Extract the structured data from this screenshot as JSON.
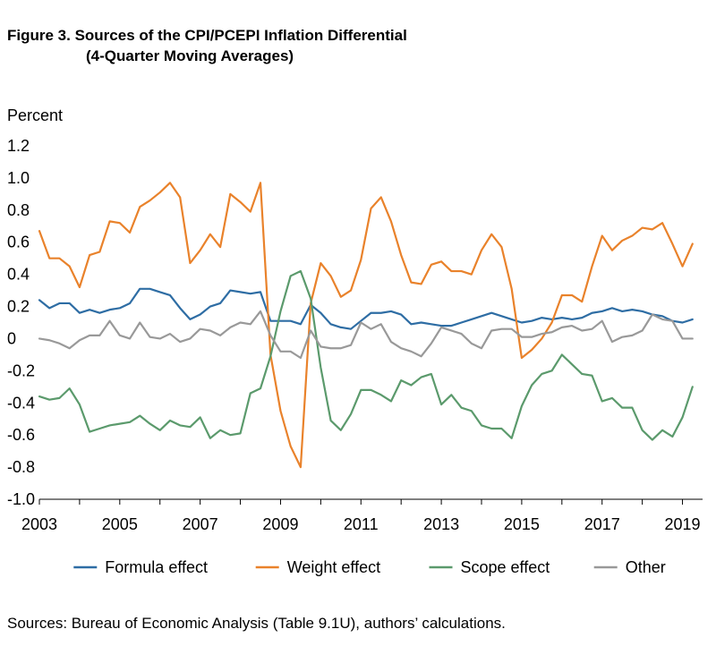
{
  "figure": {
    "title_line1": "Figure 3. Sources of the CPI/PCEPI Inflation Differential",
    "title_line2": "(4-Quarter Moving Averages)",
    "source": "Sources: Bureau of Economic Analysis (Table 9.1U), authors’ calculations."
  },
  "chart_data": {
    "type": "line",
    "title": "Figure 3. Sources of the CPI/PCEPI Inflation Differential (4-Quarter Moving Averages)",
    "xlabel": "",
    "ylabel": "Percent",
    "xlim": [
      2003.0,
      2019.5
    ],
    "ylim": [
      -1.0,
      1.2
    ],
    "x_ticks": [
      "2003",
      "2005",
      "2007",
      "2009",
      "2011",
      "2013",
      "2015",
      "2017",
      "2019"
    ],
    "y_ticks": [
      "1.2",
      "1.0",
      "0.8",
      "0.6",
      "0.4",
      "0.2",
      "0",
      "-0.2",
      "-0.4",
      "-0.6",
      "-0.8",
      "-1.0"
    ],
    "grid": false,
    "legend_position": "bottom",
    "x_start": "2003Q1",
    "x_frequency": "quarterly",
    "series": [
      {
        "name": "Formula effect",
        "color": "#2e6da4",
        "values": [
          0.24,
          0.19,
          0.22,
          0.22,
          0.16,
          0.18,
          0.16,
          0.18,
          0.19,
          0.22,
          0.31,
          0.31,
          0.29,
          0.27,
          0.19,
          0.12,
          0.15,
          0.2,
          0.22,
          0.3,
          0.29,
          0.28,
          0.29,
          0.11,
          0.11,
          0.11,
          0.09,
          0.21,
          0.16,
          0.09,
          0.07,
          0.06,
          0.11,
          0.16,
          0.16,
          0.17,
          0.15,
          0.09,
          0.1,
          0.09,
          0.08,
          0.08,
          0.1,
          0.12,
          0.14,
          0.16,
          0.14,
          0.12,
          0.1,
          0.11,
          0.13,
          0.12,
          0.13,
          0.12,
          0.13,
          0.16,
          0.17,
          0.19,
          0.17,
          0.18,
          0.17,
          0.15,
          0.14,
          0.11,
          0.1,
          0.12
        ]
      },
      {
        "name": "Weight effect",
        "color": "#e9822b",
        "values": [
          0.67,
          0.5,
          0.5,
          0.45,
          0.32,
          0.52,
          0.54,
          0.73,
          0.72,
          0.66,
          0.82,
          0.86,
          0.91,
          0.97,
          0.88,
          0.47,
          0.55,
          0.65,
          0.57,
          0.9,
          0.85,
          0.79,
          0.97,
          -0.1,
          -0.45,
          -0.67,
          -0.8,
          0.22,
          0.47,
          0.39,
          0.26,
          0.3,
          0.49,
          0.81,
          0.88,
          0.73,
          0.52,
          0.35,
          0.34,
          0.46,
          0.48,
          0.42,
          0.42,
          0.4,
          0.55,
          0.65,
          0.57,
          0.31,
          -0.12,
          -0.07,
          0.0,
          0.1,
          0.27,
          0.27,
          0.23,
          0.45,
          0.64,
          0.55,
          0.61,
          0.64,
          0.69,
          0.68,
          0.72,
          0.59,
          0.45,
          0.59
        ]
      },
      {
        "name": "Scope effect",
        "color": "#5b9a6c",
        "values": [
          -0.36,
          -0.38,
          -0.37,
          -0.31,
          -0.41,
          -0.58,
          -0.56,
          -0.54,
          -0.53,
          -0.52,
          -0.48,
          -0.53,
          -0.57,
          -0.51,
          -0.54,
          -0.55,
          -0.49,
          -0.62,
          -0.57,
          -0.6,
          -0.59,
          -0.34,
          -0.31,
          -0.11,
          0.17,
          0.39,
          0.42,
          0.25,
          -0.18,
          -0.51,
          -0.57,
          -0.47,
          -0.32,
          -0.32,
          -0.35,
          -0.39,
          -0.26,
          -0.29,
          -0.24,
          -0.22,
          -0.41,
          -0.35,
          -0.43,
          -0.45,
          -0.54,
          -0.56,
          -0.56,
          -0.62,
          -0.42,
          -0.29,
          -0.22,
          -0.2,
          -0.1,
          -0.16,
          -0.22,
          -0.23,
          -0.39,
          -0.37,
          -0.43,
          -0.43,
          -0.57,
          -0.63,
          -0.57,
          -0.61,
          -0.49,
          -0.3
        ]
      },
      {
        "name": "Other",
        "color": "#999999",
        "values": [
          0.0,
          -0.01,
          -0.03,
          -0.06,
          -0.01,
          0.02,
          0.02,
          0.11,
          0.02,
          0.0,
          0.1,
          0.01,
          0.0,
          0.03,
          -0.02,
          0.0,
          0.06,
          0.05,
          0.02,
          0.07,
          0.1,
          0.09,
          0.17,
          0.02,
          -0.08,
          -0.08,
          -0.12,
          0.05,
          -0.05,
          -0.06,
          -0.06,
          -0.04,
          0.1,
          0.06,
          0.09,
          -0.02,
          -0.06,
          -0.08,
          -0.11,
          -0.03,
          0.07,
          0.05,
          0.03,
          -0.03,
          -0.06,
          0.05,
          0.06,
          0.06,
          0.01,
          0.01,
          0.03,
          0.04,
          0.07,
          0.08,
          0.05,
          0.06,
          0.11,
          -0.02,
          0.01,
          0.02,
          0.05,
          0.15,
          0.12,
          0.11,
          0.0,
          0.0
        ]
      }
    ]
  }
}
